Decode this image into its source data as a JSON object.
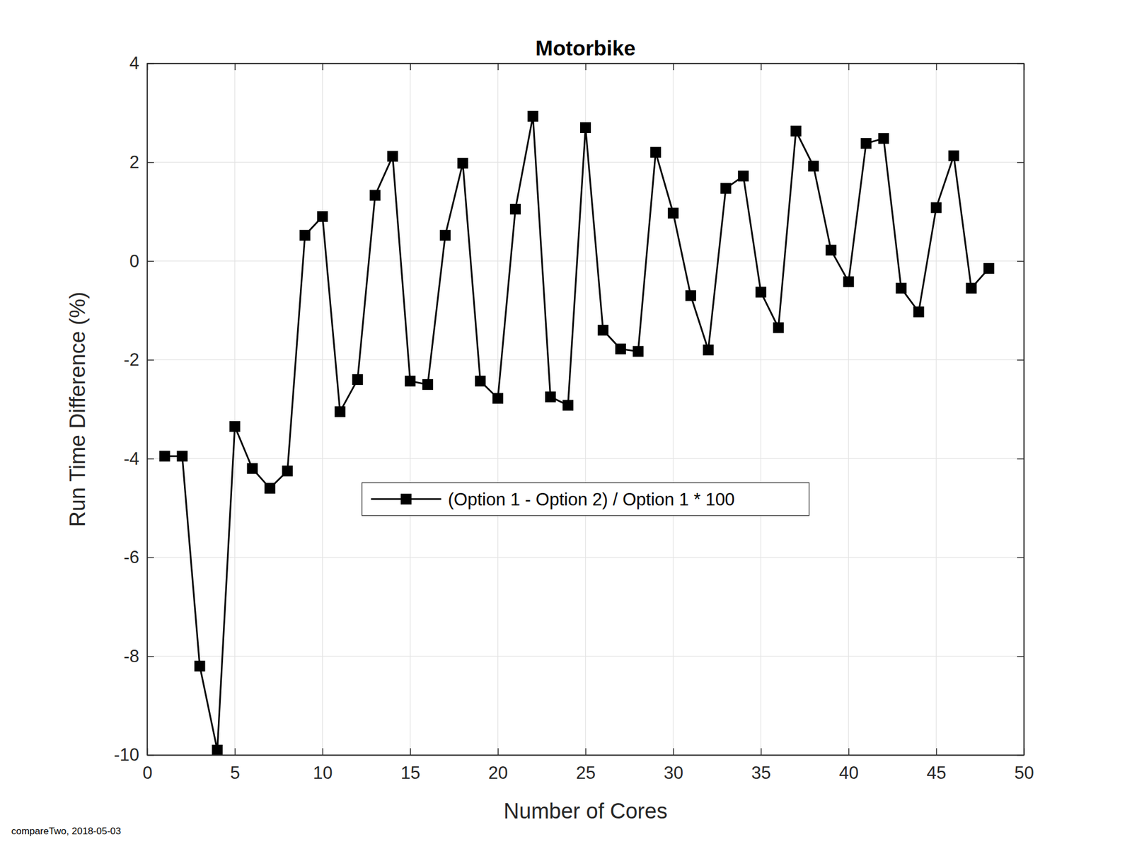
{
  "chart_data": {
    "type": "line",
    "title": "Motorbike",
    "x_label": "Number of Cores",
    "y_label": "Run Time Difference (%)",
    "annotation": "compareTwo, 2018-05-03",
    "x": [
      1,
      2,
      3,
      4,
      5,
      6,
      7,
      8,
      9,
      10,
      11,
      12,
      13,
      14,
      15,
      16,
      17,
      18,
      19,
      20,
      21,
      22,
      23,
      24,
      25,
      26,
      27,
      28,
      29,
      30,
      31,
      32,
      33,
      34,
      35,
      36,
      37,
      38,
      39,
      40,
      41,
      42,
      43,
      44,
      45,
      46,
      47,
      48
    ],
    "series": [
      {
        "name": "(Option 1 - Option 2) / Option 1 * 100",
        "color": "#000000",
        "marker": "square",
        "line_style": "solid",
        "values": [
          -3.95,
          -3.95,
          -8.2,
          -9.9,
          -3.35,
          -4.2,
          -4.6,
          -4.25,
          0.52,
          0.9,
          -3.05,
          -2.4,
          1.33,
          2.12,
          -2.43,
          -2.5,
          0.52,
          1.98,
          -2.43,
          -2.78,
          1.05,
          2.93,
          -2.75,
          -2.92,
          2.7,
          -1.4,
          -1.78,
          -1.83,
          2.2,
          0.97,
          -0.7,
          -1.8,
          1.47,
          1.72,
          -0.63,
          -1.35,
          2.63,
          1.92,
          0.22,
          -0.42,
          2.38,
          2.48,
          -0.55,
          -1.03,
          1.08,
          2.13,
          -0.55,
          -0.15
        ]
      }
    ],
    "xlim": [
      0,
      50
    ],
    "xticks": [
      0,
      5,
      10,
      15,
      20,
      25,
      30,
      35,
      40,
      45,
      50
    ],
    "ylim": [
      -10,
      4
    ],
    "yticks": [
      -10,
      -8,
      -6,
      -4,
      -2,
      0,
      2,
      4
    ],
    "grid": true,
    "legend": "center"
  }
}
